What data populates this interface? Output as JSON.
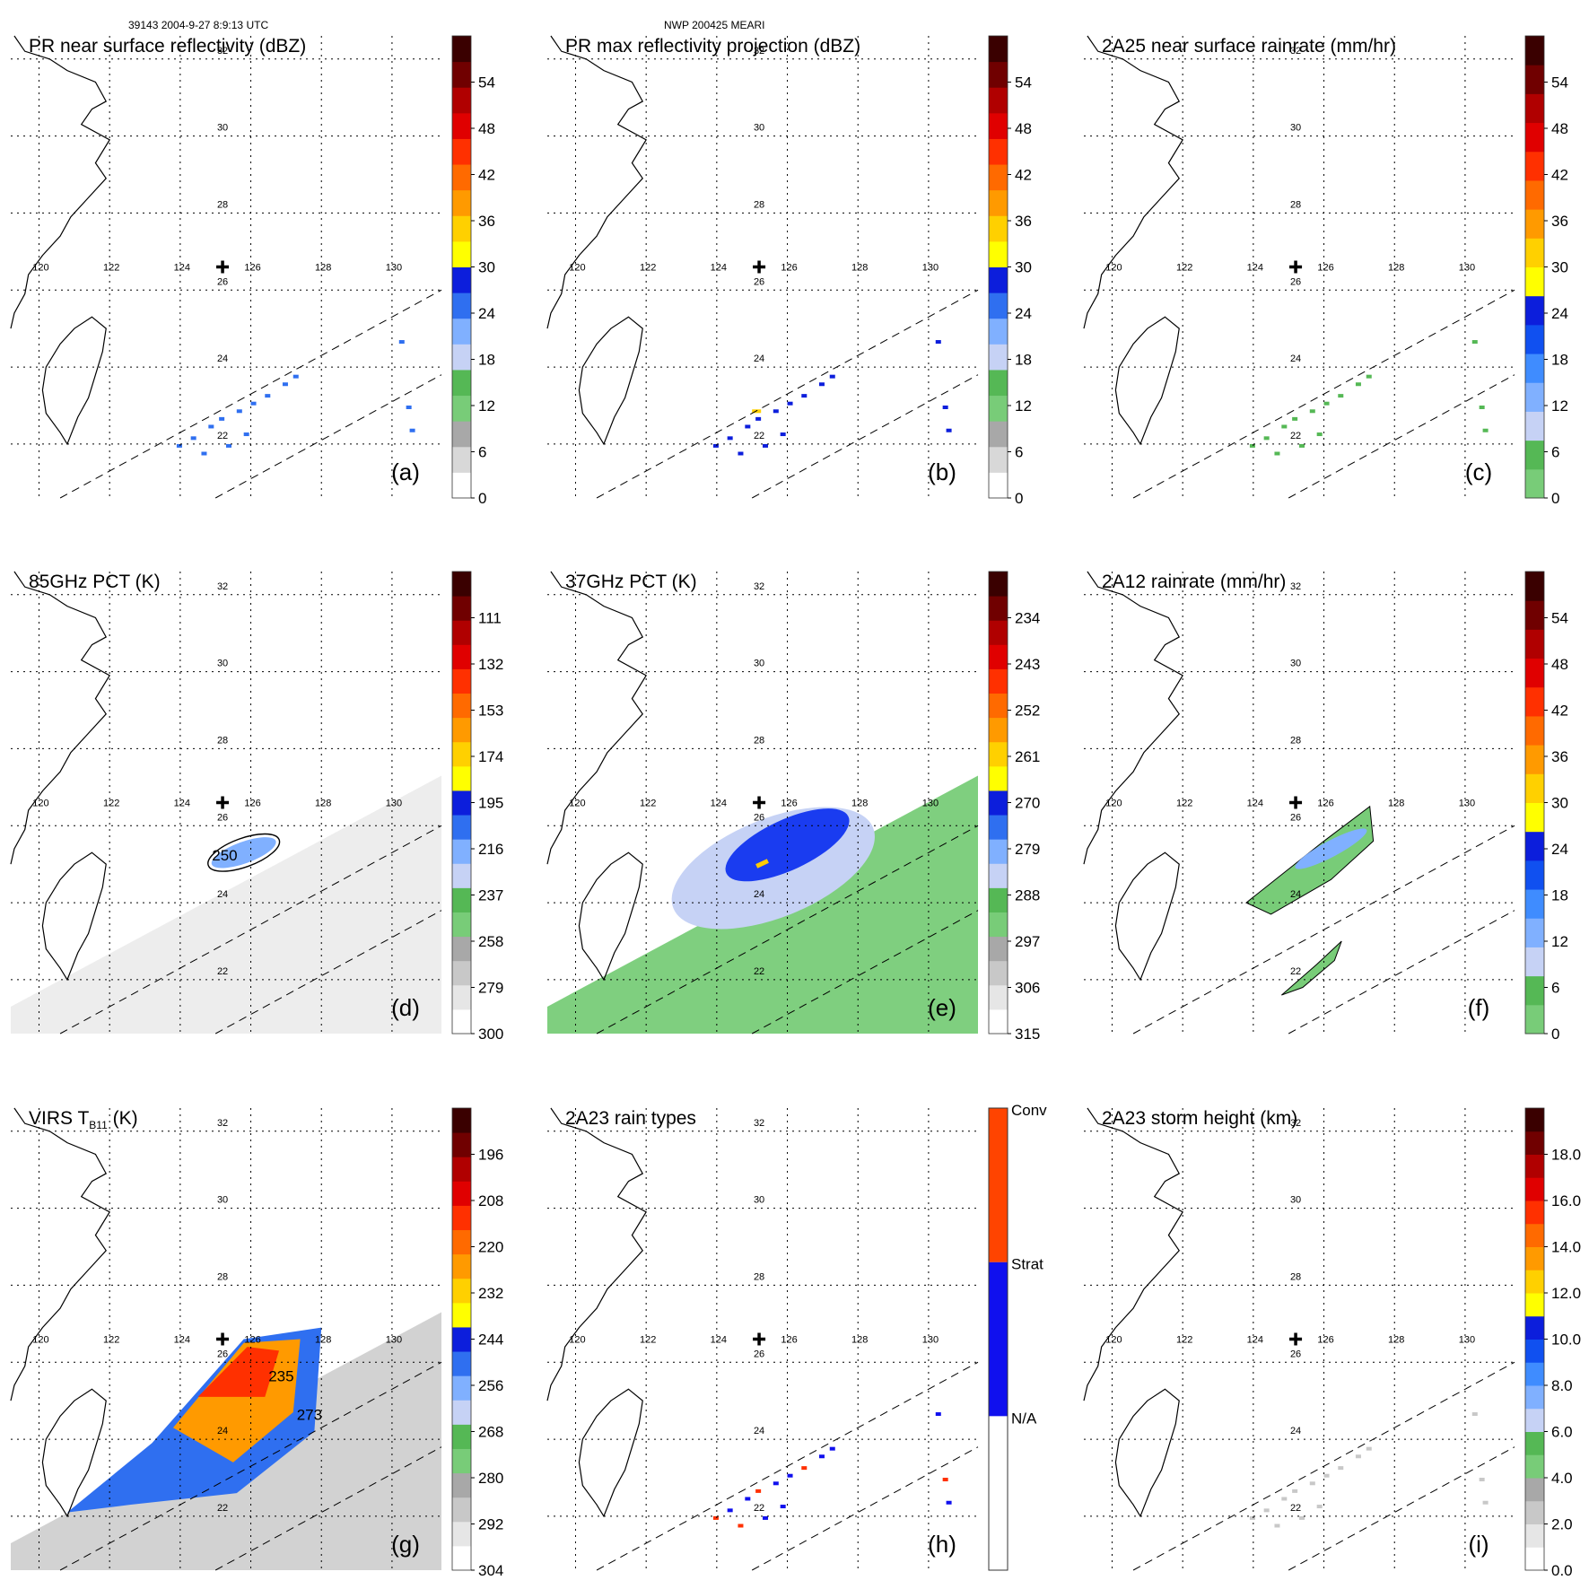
{
  "header": {
    "left": "39143 2004-9-27 8:9:13 UTC",
    "center": "NWP 200425 MEARI"
  },
  "chart_data": {
    "type": "map-panel-grid",
    "grid": {
      "rows": 3,
      "cols": 3
    },
    "lon_ticks": [
      120,
      122,
      124,
      126,
      128,
      130
    ],
    "lat_ticks": [
      22,
      24,
      26,
      28,
      30,
      32
    ],
    "lon_range": [
      119.2,
      131.4
    ],
    "lat_range": [
      20.6,
      32.6
    ],
    "storm_center": {
      "lon": 125.2,
      "lat": 26.6
    },
    "panels": [
      {
        "id": "a",
        "title": "PR near surface reflectivity (dBZ)",
        "letter": "(a)",
        "colorbar": {
          "labels": [
            "0",
            "6",
            "12",
            "18",
            "24",
            "30",
            "36",
            "42",
            "48",
            "54"
          ],
          "min": 0,
          "max": 60
        }
      },
      {
        "id": "b",
        "title": "PR max reflectivity projection (dBZ)",
        "letter": "(b)",
        "colorbar": {
          "labels": [
            "0",
            "6",
            "12",
            "18",
            "24",
            "30",
            "36",
            "42",
            "48",
            "54"
          ],
          "min": 0,
          "max": 60
        }
      },
      {
        "id": "c",
        "title": "2A25 near surface rainrate (mm/hr)",
        "letter": "(c)",
        "colorbar": {
          "labels": [
            "0",
            "6",
            "12",
            "18",
            "24",
            "30",
            "36",
            "42",
            "48",
            "54"
          ],
          "min": 0,
          "max": 60
        }
      },
      {
        "id": "d",
        "title": "85GHz PCT (K)",
        "letter": "(d)",
        "contour_label": "250",
        "colorbar": {
          "labels": [
            "300",
            "279",
            "258",
            "237",
            "216",
            "195",
            "174",
            "153",
            "132",
            "111"
          ],
          "min": 300,
          "max": 90
        }
      },
      {
        "id": "e",
        "title": "37GHz PCT (K)",
        "letter": "(e)",
        "colorbar": {
          "labels": [
            "315",
            "306",
            "297",
            "288",
            "279",
            "270",
            "261",
            "252",
            "243",
            "234"
          ],
          "min": 315,
          "max": 225
        }
      },
      {
        "id": "f",
        "title": "2A12 rainrate (mm/hr)",
        "letter": "(f)",
        "colorbar": {
          "labels": [
            "0",
            "6",
            "12",
            "18",
            "24",
            "30",
            "36",
            "42",
            "48",
            "54"
          ],
          "min": 0,
          "max": 60
        }
      },
      {
        "id": "g",
        "title": "VIRS T",
        "title_sub": "B11",
        "title_tail": " (K)",
        "letter": "(g)",
        "contour_labels": [
          "235",
          "273"
        ],
        "colorbar": {
          "labels": [
            "304",
            "292",
            "280",
            "268",
            "256",
            "244",
            "232",
            "220",
            "208",
            "196"
          ],
          "min": 304,
          "max": 184
        }
      },
      {
        "id": "h",
        "title": "2A23 rain types",
        "letter": "(h)",
        "colorbar": {
          "categorical": true,
          "labels": [
            "N/A",
            "Strat",
            "Conv"
          ],
          "colors": [
            "#ffffff",
            "#1010ee",
            "#ff4400"
          ]
        }
      },
      {
        "id": "i",
        "title": "2A23 storm height (km)",
        "letter": "(i)",
        "colorbar": {
          "labels": [
            "0.0",
            "2.0",
            "4.0",
            "6.0",
            "8.0",
            "10.0",
            "12.0",
            "14.0",
            "16.0",
            "18.0"
          ],
          "min": 0,
          "max": 20
        }
      }
    ]
  }
}
